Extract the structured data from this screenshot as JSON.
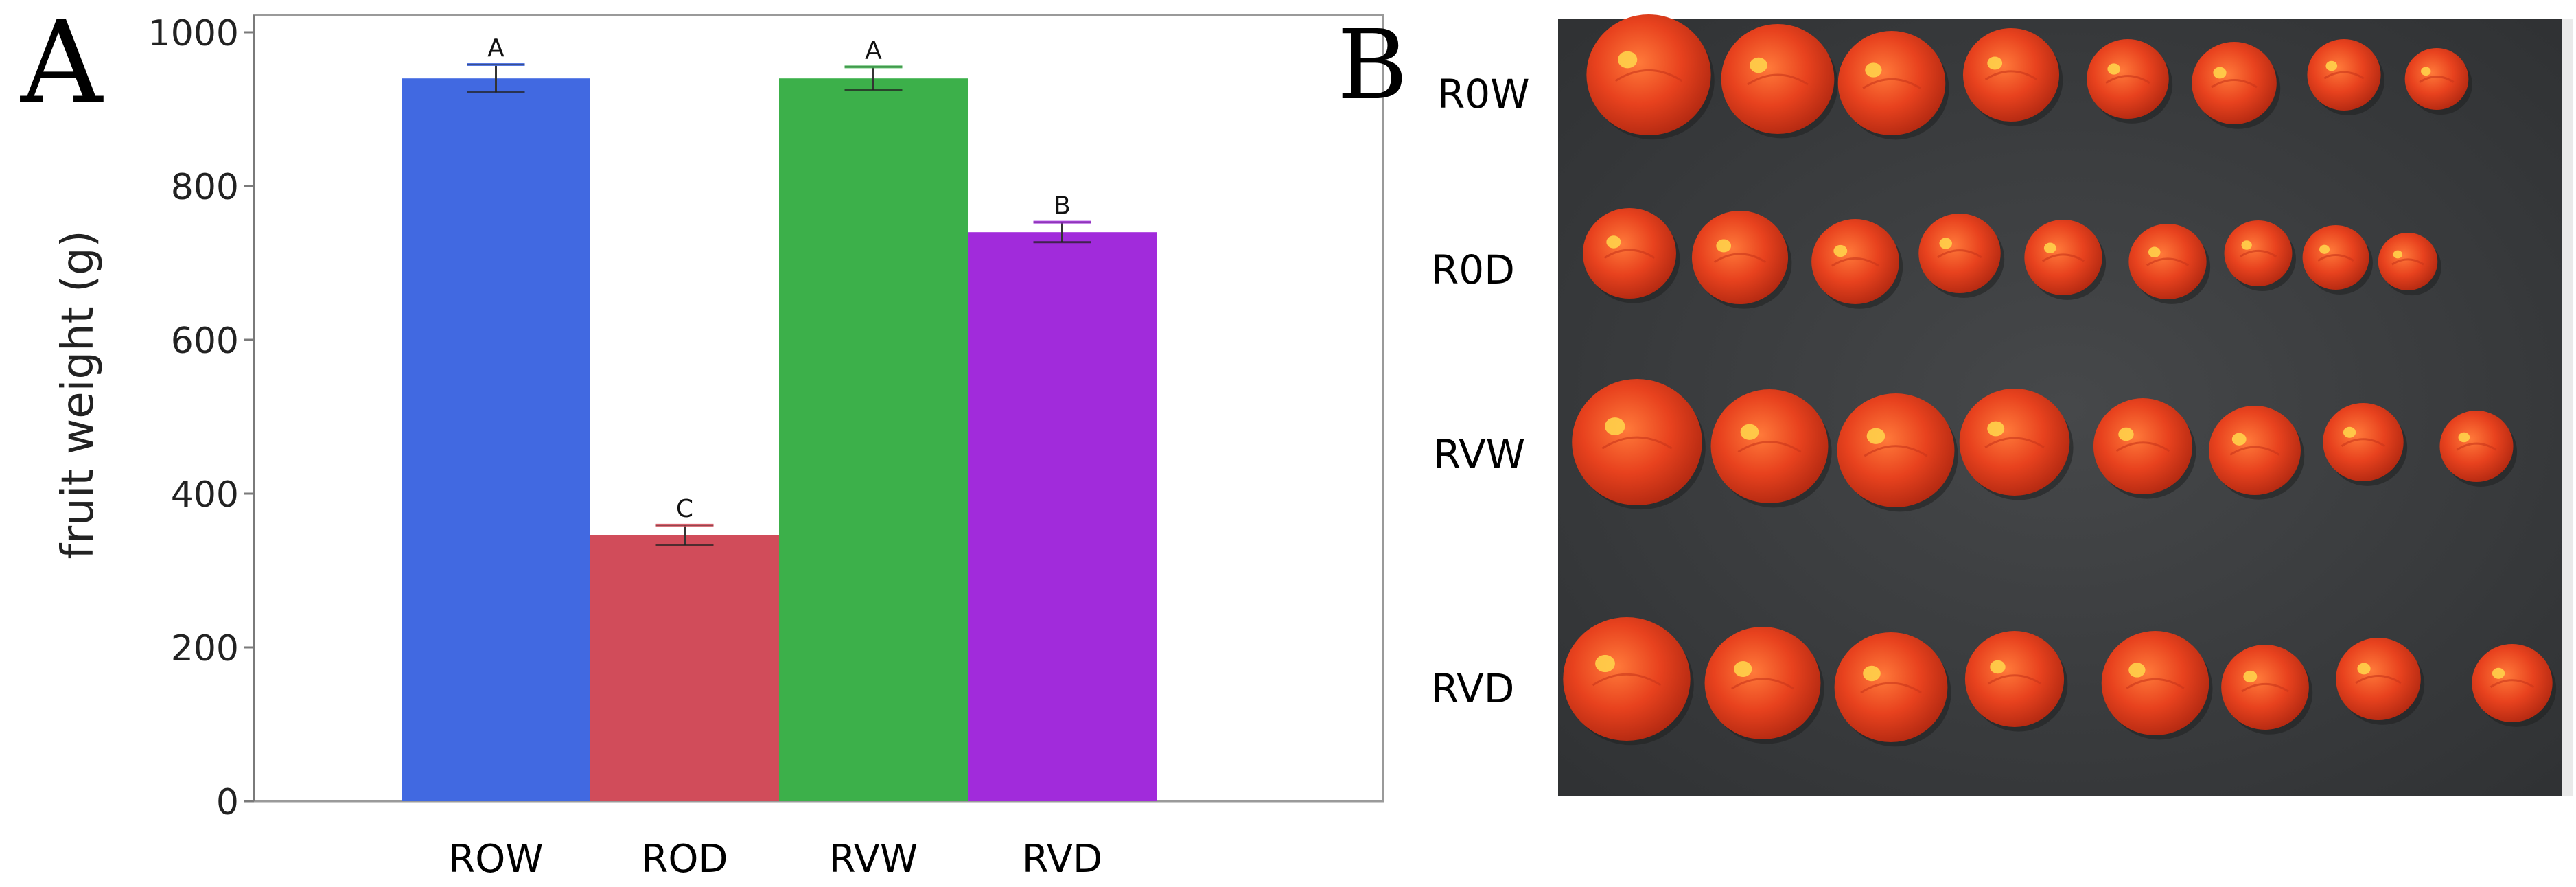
{
  "panel_a_letter": "A",
  "panel_b_letter": "B",
  "chart_data": {
    "type": "bar",
    "title": "",
    "xlabel": "",
    "ylabel": "fruit weight (g)",
    "ylim": [
      0,
      1000
    ],
    "yticks": [
      "0",
      "200",
      "400",
      "600",
      "800",
      "1000"
    ],
    "categories": [
      "ROW",
      "ROD",
      "RVW",
      "RVD"
    ],
    "values": [
      940,
      346,
      940,
      740
    ],
    "errors": [
      18,
      13,
      15,
      13
    ],
    "significance": [
      "A",
      "C",
      "A",
      "B"
    ],
    "colors": [
      "#4169E1",
      "#D14C5A",
      "#3CB04A",
      "#A12BDB"
    ],
    "grid": false,
    "legend": "none"
  },
  "photo": {
    "row_labels": [
      "R0W",
      "R0D",
      "RVW",
      "RVD"
    ],
    "tomato_counts": [
      8,
      9,
      8,
      8
    ],
    "background_color": "#3b3d3f",
    "tomato_color": "#E8421E"
  }
}
